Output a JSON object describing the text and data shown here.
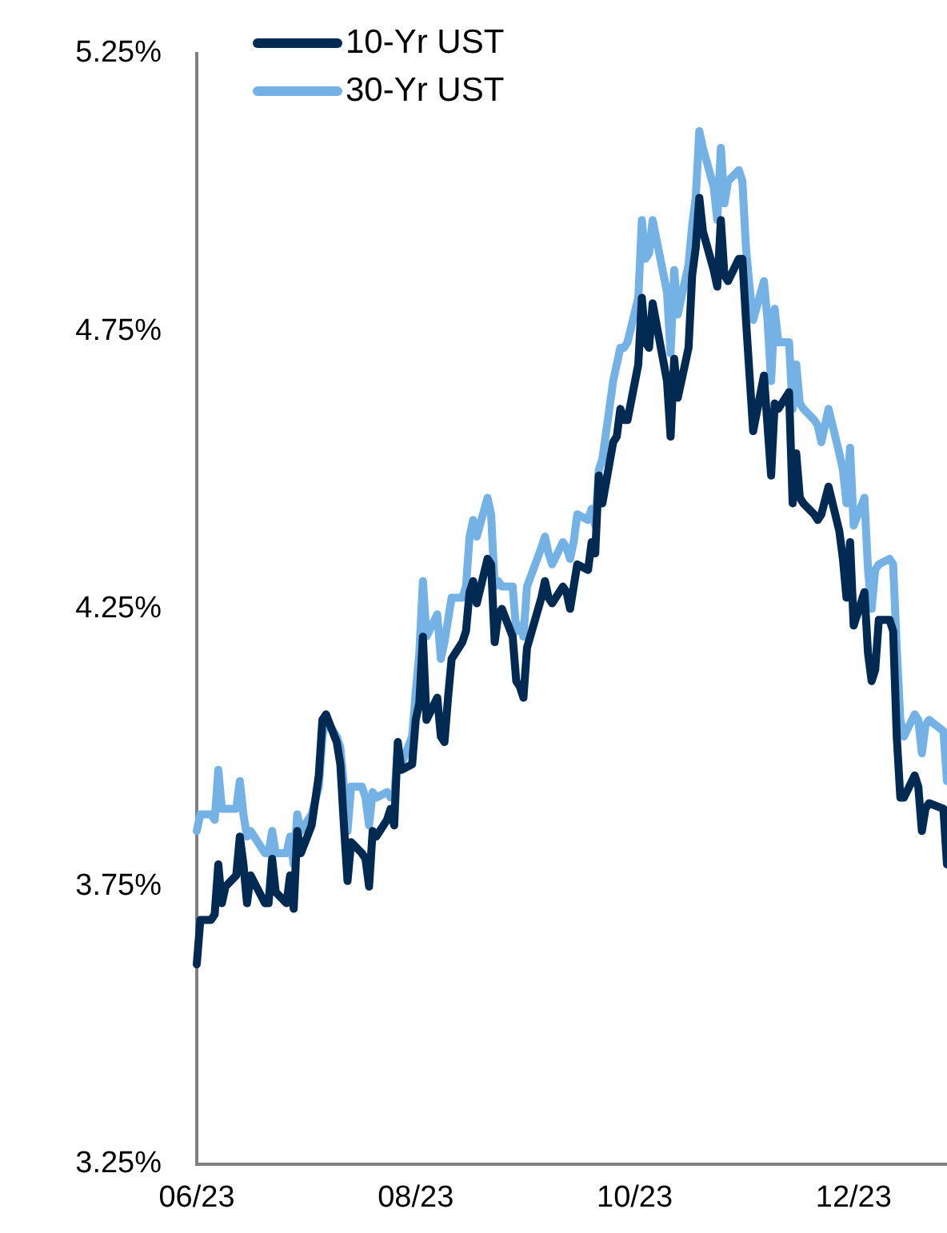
{
  "chart_data": {
    "type": "line",
    "legend": "top left",
    "grid": false,
    "marker": "none",
    "line_style": "solid",
    "xlim": [
      "2023-06-01",
      "2023-12-27"
    ],
    "xticks": [
      {
        "value": "2023-06-01",
        "label": "06/23"
      },
      {
        "value": "2023-08-01",
        "label": "08/23"
      },
      {
        "value": "2023-10-01",
        "label": "10/23"
      },
      {
        "value": "2023-12-01",
        "label": "12/23"
      }
    ],
    "ylim": [
      3.25,
      5.25
    ],
    "yticks": [
      {
        "value": 3.25,
        "label": "3.25%"
      },
      {
        "value": 3.75,
        "label": "3.75%"
      },
      {
        "value": 4.25,
        "label": "4.25%"
      },
      {
        "value": 4.75,
        "label": "4.75%"
      },
      {
        "value": 5.25,
        "label": "5.25%"
      }
    ],
    "x": [
      "2023-06-01",
      "2023-06-02",
      "2023-06-05",
      "2023-06-06",
      "2023-06-07",
      "2023-06-08",
      "2023-06-09",
      "2023-06-12",
      "2023-06-13",
      "2023-06-14",
      "2023-06-15",
      "2023-06-16",
      "2023-06-20",
      "2023-06-21",
      "2023-06-22",
      "2023-06-23",
      "2023-06-26",
      "2023-06-27",
      "2023-06-28",
      "2023-06-29",
      "2023-06-30",
      "2023-07-03",
      "2023-07-05",
      "2023-07-06",
      "2023-07-07",
      "2023-07-10",
      "2023-07-11",
      "2023-07-12",
      "2023-07-13",
      "2023-07-14",
      "2023-07-17",
      "2023-07-18",
      "2023-07-19",
      "2023-07-20",
      "2023-07-21",
      "2023-07-24",
      "2023-07-25",
      "2023-07-26",
      "2023-07-27",
      "2023-07-28",
      "2023-07-31",
      "2023-08-01",
      "2023-08-02",
      "2023-08-03",
      "2023-08-04",
      "2023-08-07",
      "2023-08-08",
      "2023-08-09",
      "2023-08-10",
      "2023-08-11",
      "2023-08-14",
      "2023-08-15",
      "2023-08-16",
      "2023-08-17",
      "2023-08-18",
      "2023-08-21",
      "2023-08-22",
      "2023-08-23",
      "2023-08-24",
      "2023-08-25",
      "2023-08-28",
      "2023-08-29",
      "2023-08-30",
      "2023-08-31",
      "2023-09-01",
      "2023-09-05",
      "2023-09-06",
      "2023-09-07",
      "2023-09-08",
      "2023-09-11",
      "2023-09-12",
      "2023-09-13",
      "2023-09-14",
      "2023-09-15",
      "2023-09-18",
      "2023-09-19",
      "2023-09-20",
      "2023-09-21",
      "2023-09-22",
      "2023-09-25",
      "2023-09-26",
      "2023-09-27",
      "2023-09-28",
      "2023-09-29",
      "2023-10-02",
      "2023-10-03",
      "2023-10-04",
      "2023-10-05",
      "2023-10-06",
      "2023-10-10",
      "2023-10-11",
      "2023-10-12",
      "2023-10-13",
      "2023-10-16",
      "2023-10-17",
      "2023-10-18",
      "2023-10-19",
      "2023-10-20",
      "2023-10-23",
      "2023-10-24",
      "2023-10-25",
      "2023-10-26",
      "2023-10-27",
      "2023-10-30",
      "2023-10-31",
      "2023-11-01",
      "2023-11-02",
      "2023-11-03",
      "2023-11-06",
      "2023-11-07",
      "2023-11-08",
      "2023-11-09",
      "2023-11-10",
      "2023-11-13",
      "2023-11-14",
      "2023-11-15",
      "2023-11-16",
      "2023-11-17",
      "2023-11-20",
      "2023-11-21",
      "2023-11-22",
      "2023-11-24",
      "2023-11-27",
      "2023-11-28",
      "2023-11-29",
      "2023-11-30",
      "2023-12-01",
      "2023-12-04",
      "2023-12-05",
      "2023-12-06",
      "2023-12-07",
      "2023-12-08",
      "2023-12-11",
      "2023-12-12",
      "2023-12-13",
      "2023-12-14",
      "2023-12-15",
      "2023-12-18",
      "2023-12-19",
      "2023-12-20",
      "2023-12-21",
      "2023-12-22",
      "2023-12-26",
      "2023-12-27"
    ],
    "series": [
      {
        "name": "10-Yr UST",
        "color": "#002a52",
        "values": [
          3.61,
          3.69,
          3.69,
          3.7,
          3.79,
          3.72,
          3.75,
          3.77,
          3.84,
          3.79,
          3.72,
          3.77,
          3.72,
          3.72,
          3.8,
          3.74,
          3.72,
          3.77,
          3.71,
          3.85,
          3.81,
          3.86,
          3.95,
          4.05,
          4.06,
          4.01,
          3.97,
          3.86,
          3.76,
          3.83,
          3.81,
          3.8,
          3.75,
          3.85,
          3.84,
          3.87,
          3.89,
          3.86,
          4.01,
          3.96,
          3.97,
          4.05,
          4.08,
          4.2,
          4.05,
          4.09,
          4.02,
          4.01,
          4.09,
          4.16,
          4.19,
          4.21,
          4.28,
          4.3,
          4.26,
          4.34,
          4.33,
          4.19,
          4.24,
          4.25,
          4.2,
          4.12,
          4.11,
          4.09,
          4.18,
          4.27,
          4.3,
          4.27,
          4.26,
          4.29,
          4.28,
          4.25,
          4.29,
          4.33,
          4.32,
          4.37,
          4.35,
          4.49,
          4.44,
          4.55,
          4.56,
          4.61,
          4.59,
          4.59,
          4.69,
          4.81,
          4.73,
          4.72,
          4.8,
          4.66,
          4.56,
          4.7,
          4.63,
          4.72,
          4.85,
          4.9,
          4.99,
          4.93,
          4.86,
          4.83,
          4.95,
          4.85,
          4.84,
          4.88,
          4.88,
          4.77,
          4.67,
          4.57,
          4.67,
          4.58,
          4.49,
          4.62,
          4.61,
          4.64,
          4.44,
          4.53,
          4.45,
          4.44,
          4.42,
          4.41,
          4.42,
          4.47,
          4.39,
          4.34,
          4.27,
          4.37,
          4.22,
          4.28,
          4.17,
          4.12,
          4.14,
          4.23,
          4.23,
          4.21,
          4.02,
          3.91,
          3.91,
          3.95,
          3.93,
          3.85,
          3.89,
          3.9,
          3.89,
          3.79
        ]
      },
      {
        "name": "30-Yr UST",
        "color": "#74b1e4",
        "values": [
          3.85,
          3.88,
          3.88,
          3.87,
          3.96,
          3.89,
          3.89,
          3.89,
          3.94,
          3.88,
          3.84,
          3.85,
          3.81,
          3.81,
          3.85,
          3.81,
          3.81,
          3.84,
          3.79,
          3.88,
          3.85,
          3.88,
          3.93,
          4.02,
          4.05,
          4.02,
          4.0,
          3.93,
          3.85,
          3.93,
          3.93,
          3.91,
          3.86,
          3.92,
          3.91,
          3.92,
          3.91,
          3.91,
          4.0,
          3.97,
          4.02,
          4.1,
          4.17,
          4.3,
          4.2,
          4.24,
          4.16,
          4.19,
          4.23,
          4.27,
          4.27,
          4.29,
          4.38,
          4.41,
          4.38,
          4.45,
          4.42,
          4.29,
          4.3,
          4.29,
          4.29,
          4.21,
          4.22,
          4.2,
          4.29,
          4.36,
          4.38,
          4.35,
          4.33,
          4.37,
          4.36,
          4.34,
          4.37,
          4.42,
          4.41,
          4.43,
          4.4,
          4.5,
          4.52,
          4.66,
          4.69,
          4.72,
          4.72,
          4.73,
          4.81,
          4.95,
          4.88,
          4.89,
          4.95,
          4.82,
          4.71,
          4.86,
          4.78,
          4.87,
          4.94,
          4.99,
          5.11,
          5.08,
          5.01,
          4.95,
          5.08,
          4.98,
          5.02,
          5.04,
          5.02,
          4.9,
          4.83,
          4.77,
          4.84,
          4.77,
          4.66,
          4.79,
          4.73,
          4.73,
          4.61,
          4.69,
          4.62,
          4.61,
          4.59,
          4.58,
          4.55,
          4.61,
          4.53,
          4.5,
          4.44,
          4.54,
          4.4,
          4.45,
          4.32,
          4.25,
          4.32,
          4.33,
          4.34,
          4.33,
          4.18,
          4.05,
          4.02,
          4.06,
          4.05,
          3.99,
          4.04,
          4.05,
          4.03,
          3.94
        ]
      }
    ]
  }
}
